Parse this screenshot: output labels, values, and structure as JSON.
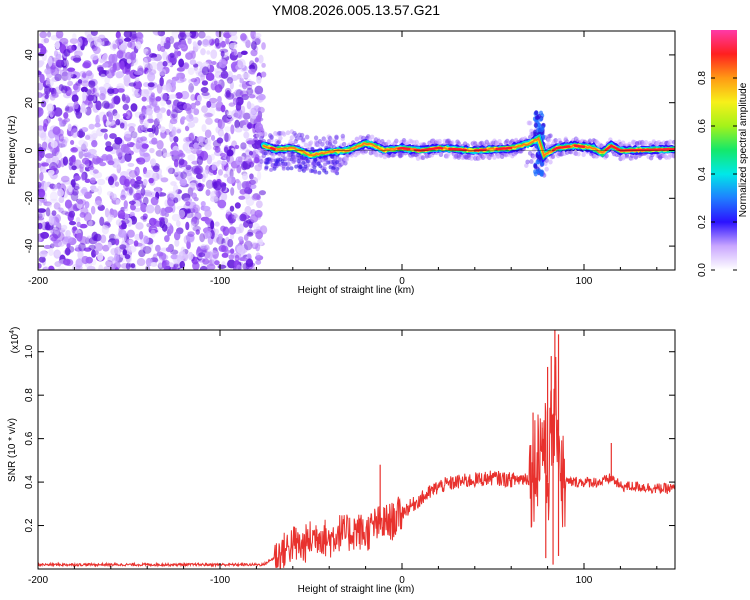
{
  "title": "YM08.2026.005.13.57.G21",
  "chart_data": [
    {
      "type": "heatmap",
      "name": "spectrogram",
      "xlabel": "Height of straight line (km)",
      "ylabel": "Frequency (Hz)",
      "xlim": [
        -200,
        150
      ],
      "ylim": [
        -50,
        50
      ],
      "x_ticks": [
        -200,
        -100,
        0,
        100
      ],
      "y_ticks": [
        -40,
        -20,
        0,
        20,
        40
      ],
      "noise_region": {
        "x_range": [
          -200,
          -76
        ],
        "y_range": [
          -50,
          50
        ],
        "note": "purple noise"
      },
      "ridge": [
        {
          "x": -76,
          "y": 2
        },
        {
          "x": -70,
          "y": 0.5
        },
        {
          "x": -60,
          "y": 1
        },
        {
          "x": -50,
          "y": -2
        },
        {
          "x": -40,
          "y": -0.5
        },
        {
          "x": -30,
          "y": 0
        },
        {
          "x": -20,
          "y": 3
        },
        {
          "x": -15,
          "y": 2
        },
        {
          "x": -10,
          "y": 0
        },
        {
          "x": 0,
          "y": 1
        },
        {
          "x": 10,
          "y": 0
        },
        {
          "x": 20,
          "y": 1
        },
        {
          "x": 30,
          "y": 0.5
        },
        {
          "x": 40,
          "y": 0
        },
        {
          "x": 50,
          "y": 0.5
        },
        {
          "x": 60,
          "y": 1
        },
        {
          "x": 70,
          "y": 3
        },
        {
          "x": 75,
          "y": 5
        },
        {
          "x": 78,
          "y": -2
        },
        {
          "x": 85,
          "y": 1
        },
        {
          "x": 95,
          "y": 2
        },
        {
          "x": 105,
          "y": 1
        },
        {
          "x": 110,
          "y": -1
        },
        {
          "x": 115,
          "y": 2
        },
        {
          "x": 120,
          "y": 0
        },
        {
          "x": 150,
          "y": 0.5
        }
      ],
      "colorbar": {
        "label": "Normalized spectral amplitude",
        "range": [
          0,
          1
        ],
        "ticks": [
          0.0,
          0.2,
          0.4,
          0.6,
          0.8
        ],
        "tick_labels": [
          "0.0",
          "0.2",
          "0.4",
          "0.6",
          "0.8"
        ]
      }
    },
    {
      "type": "line",
      "name": "snr",
      "xlabel": "Height of straight line (km)",
      "ylabel": "SNR (10 * v/v)",
      "y_multiplier": "(x10",
      "y_multiplier_exp": "4",
      "y_multiplier_close": ")",
      "xlim": [
        -200,
        150
      ],
      "ylim": [
        0,
        1.1
      ],
      "x_ticks": [
        -200,
        -100,
        0,
        100
      ],
      "y_ticks": [
        0.2,
        0.4,
        0.6,
        0.8,
        1.0
      ],
      "y_tick_labels": [
        "0.2",
        "0.4",
        "0.6",
        "0.8",
        "1.0"
      ],
      "color": "#e8312d",
      "series": [
        {
          "name": "SNR",
          "x": [
            -200,
            -150,
            -100,
            -76,
            -65,
            -60,
            -55,
            -50,
            -45,
            -40,
            -35,
            -30,
            -25,
            -20,
            -15,
            -10,
            -5,
            0,
            10,
            20,
            30,
            40,
            50,
            60,
            70,
            72,
            75,
            78,
            80,
            82,
            85,
            88,
            92,
            100,
            110,
            115,
            120,
            130,
            140,
            150
          ],
          "y": [
            0.02,
            0.02,
            0.02,
            0.02,
            0.08,
            0.12,
            0.1,
            0.14,
            0.16,
            0.13,
            0.17,
            0.16,
            0.18,
            0.16,
            0.2,
            0.21,
            0.22,
            0.26,
            0.32,
            0.38,
            0.4,
            0.41,
            0.42,
            0.41,
            0.42,
            0.45,
            0.55,
            0.6,
            0.4,
            0.62,
            0.75,
            0.4,
            0.4,
            0.4,
            0.4,
            0.42,
            0.38,
            0.38,
            0.37,
            0.37
          ]
        }
      ],
      "spikes": [
        {
          "x": -12,
          "y": 0.48
        },
        {
          "x": 72,
          "y": 0.72
        },
        {
          "x": 77,
          "y": 0.65
        },
        {
          "x": 80,
          "y": 0.93
        },
        {
          "x": 82,
          "y": 0.98
        },
        {
          "x": 84,
          "y": 1.1
        },
        {
          "x": 86,
          "y": 1.08
        },
        {
          "x": 115,
          "y": 0.58
        }
      ],
      "dips": [
        {
          "x": 79,
          "y": 0.05
        },
        {
          "x": 83,
          "y": 0.02
        },
        {
          "x": 86,
          "y": 0.06
        }
      ]
    }
  ]
}
